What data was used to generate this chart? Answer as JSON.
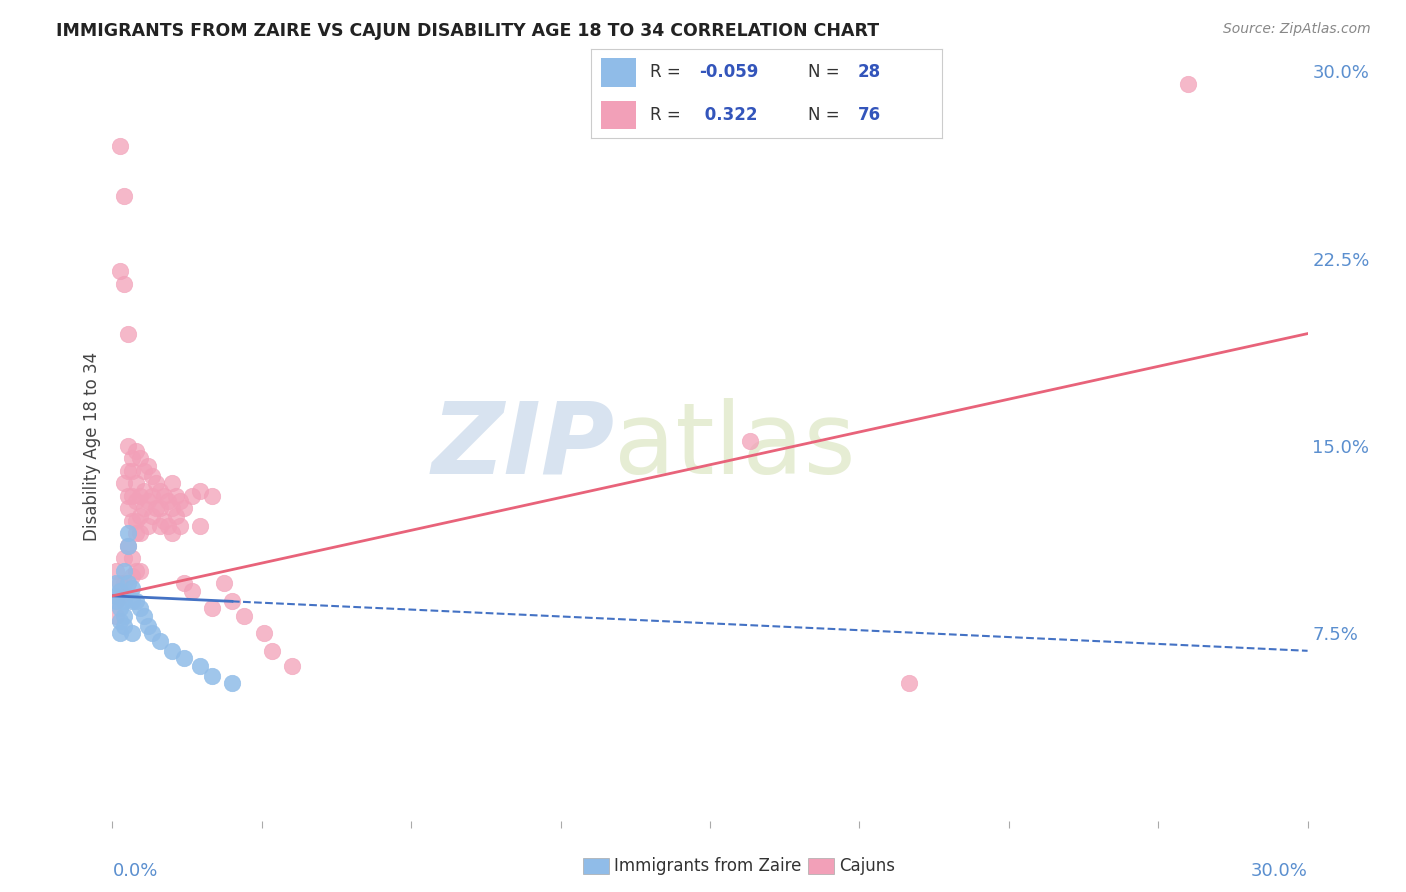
{
  "title": "IMMIGRANTS FROM ZAIRE VS CAJUN DISABILITY AGE 18 TO 34 CORRELATION CHART",
  "source": "Source: ZipAtlas.com",
  "ylabel": "Disability Age 18 to 34",
  "right_yticks": [
    0.075,
    0.15,
    0.225,
    0.3
  ],
  "right_yticklabels": [
    "7.5%",
    "15.0%",
    "22.5%",
    "30.0%"
  ],
  "xmin": 0.0,
  "xmax": 0.3,
  "ymin": 0.0,
  "ymax": 0.3,
  "watermark_zip": "ZIP",
  "watermark_atlas": "atlas",
  "zaire_color": "#90bce8",
  "cajun_color": "#f2a0b8",
  "zaire_line_color": "#4472c4",
  "cajun_line_color": "#e8637a",
  "background_color": "#ffffff",
  "grid_color": "#d0d0d0",
  "zaire_points": [
    [
      0.001,
      0.09
    ],
    [
      0.001,
      0.095
    ],
    [
      0.001,
      0.088
    ],
    [
      0.002,
      0.092
    ],
    [
      0.002,
      0.085
    ],
    [
      0.002,
      0.08
    ],
    [
      0.002,
      0.075
    ],
    [
      0.003,
      0.1
    ],
    [
      0.003,
      0.088
    ],
    [
      0.003,
      0.082
    ],
    [
      0.003,
      0.078
    ],
    [
      0.004,
      0.115
    ],
    [
      0.004,
      0.11
    ],
    [
      0.004,
      0.095
    ],
    [
      0.005,
      0.093
    ],
    [
      0.005,
      0.088
    ],
    [
      0.005,
      0.075
    ],
    [
      0.006,
      0.088
    ],
    [
      0.007,
      0.085
    ],
    [
      0.008,
      0.082
    ],
    [
      0.009,
      0.078
    ],
    [
      0.01,
      0.075
    ],
    [
      0.012,
      0.072
    ],
    [
      0.015,
      0.068
    ],
    [
      0.018,
      0.065
    ],
    [
      0.022,
      0.062
    ],
    [
      0.025,
      0.058
    ],
    [
      0.03,
      0.055
    ]
  ],
  "cajun_points": [
    [
      0.001,
      0.1
    ],
    [
      0.001,
      0.088
    ],
    [
      0.001,
      0.082
    ],
    [
      0.002,
      0.27
    ],
    [
      0.002,
      0.22
    ],
    [
      0.002,
      0.095
    ],
    [
      0.002,
      0.09
    ],
    [
      0.003,
      0.25
    ],
    [
      0.003,
      0.215
    ],
    [
      0.003,
      0.135
    ],
    [
      0.003,
      0.105
    ],
    [
      0.003,
      0.095
    ],
    [
      0.004,
      0.195
    ],
    [
      0.004,
      0.15
    ],
    [
      0.004,
      0.14
    ],
    [
      0.004,
      0.13
    ],
    [
      0.004,
      0.125
    ],
    [
      0.004,
      0.11
    ],
    [
      0.005,
      0.145
    ],
    [
      0.005,
      0.14
    ],
    [
      0.005,
      0.13
    ],
    [
      0.005,
      0.12
    ],
    [
      0.005,
      0.105
    ],
    [
      0.005,
      0.098
    ],
    [
      0.006,
      0.148
    ],
    [
      0.006,
      0.135
    ],
    [
      0.006,
      0.128
    ],
    [
      0.006,
      0.12
    ],
    [
      0.006,
      0.115
    ],
    [
      0.006,
      0.1
    ],
    [
      0.007,
      0.145
    ],
    [
      0.007,
      0.13
    ],
    [
      0.007,
      0.122
    ],
    [
      0.007,
      0.115
    ],
    [
      0.007,
      0.1
    ],
    [
      0.008,
      0.14
    ],
    [
      0.008,
      0.132
    ],
    [
      0.008,
      0.125
    ],
    [
      0.009,
      0.142
    ],
    [
      0.009,
      0.128
    ],
    [
      0.009,
      0.118
    ],
    [
      0.01,
      0.138
    ],
    [
      0.01,
      0.13
    ],
    [
      0.01,
      0.122
    ],
    [
      0.011,
      0.135
    ],
    [
      0.011,
      0.125
    ],
    [
      0.012,
      0.132
    ],
    [
      0.012,
      0.125
    ],
    [
      0.012,
      0.118
    ],
    [
      0.013,
      0.13
    ],
    [
      0.013,
      0.12
    ],
    [
      0.014,
      0.128
    ],
    [
      0.014,
      0.118
    ],
    [
      0.015,
      0.135
    ],
    [
      0.015,
      0.125
    ],
    [
      0.015,
      0.115
    ],
    [
      0.016,
      0.13
    ],
    [
      0.016,
      0.122
    ],
    [
      0.017,
      0.128
    ],
    [
      0.017,
      0.118
    ],
    [
      0.018,
      0.125
    ],
    [
      0.018,
      0.095
    ],
    [
      0.02,
      0.13
    ],
    [
      0.02,
      0.092
    ],
    [
      0.022,
      0.132
    ],
    [
      0.022,
      0.118
    ],
    [
      0.025,
      0.13
    ],
    [
      0.025,
      0.085
    ],
    [
      0.028,
      0.095
    ],
    [
      0.03,
      0.088
    ],
    [
      0.033,
      0.082
    ],
    [
      0.038,
      0.075
    ],
    [
      0.04,
      0.068
    ],
    [
      0.045,
      0.062
    ],
    [
      0.16,
      0.152
    ],
    [
      0.27,
      0.295
    ],
    [
      0.2,
      0.055
    ]
  ]
}
